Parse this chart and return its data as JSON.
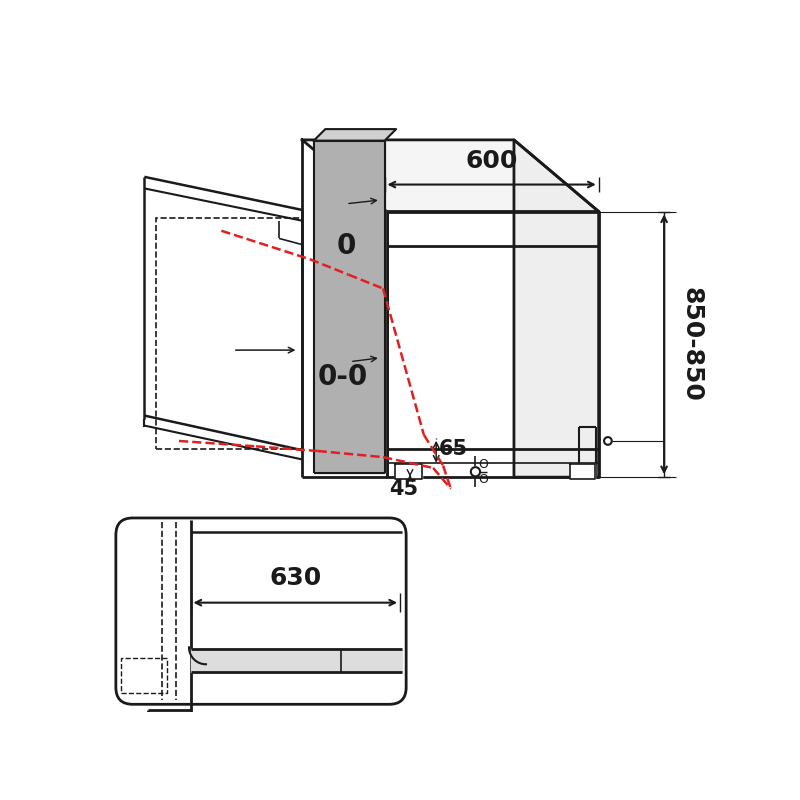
{
  "bg_color": "#ffffff",
  "line_color": "#1a1a1a",
  "red_dashed_color": "#e02020",
  "gray_fill": "#b0b0b0",
  "label_600": "600",
  "label_850": "850-850",
  "label_65": "65",
  "label_45": "45",
  "label_630": "630",
  "label_0": "0",
  "label_00": "0-0",
  "label_0_small": "0",
  "label_dash_0": "-",
  "label_0b": "0"
}
